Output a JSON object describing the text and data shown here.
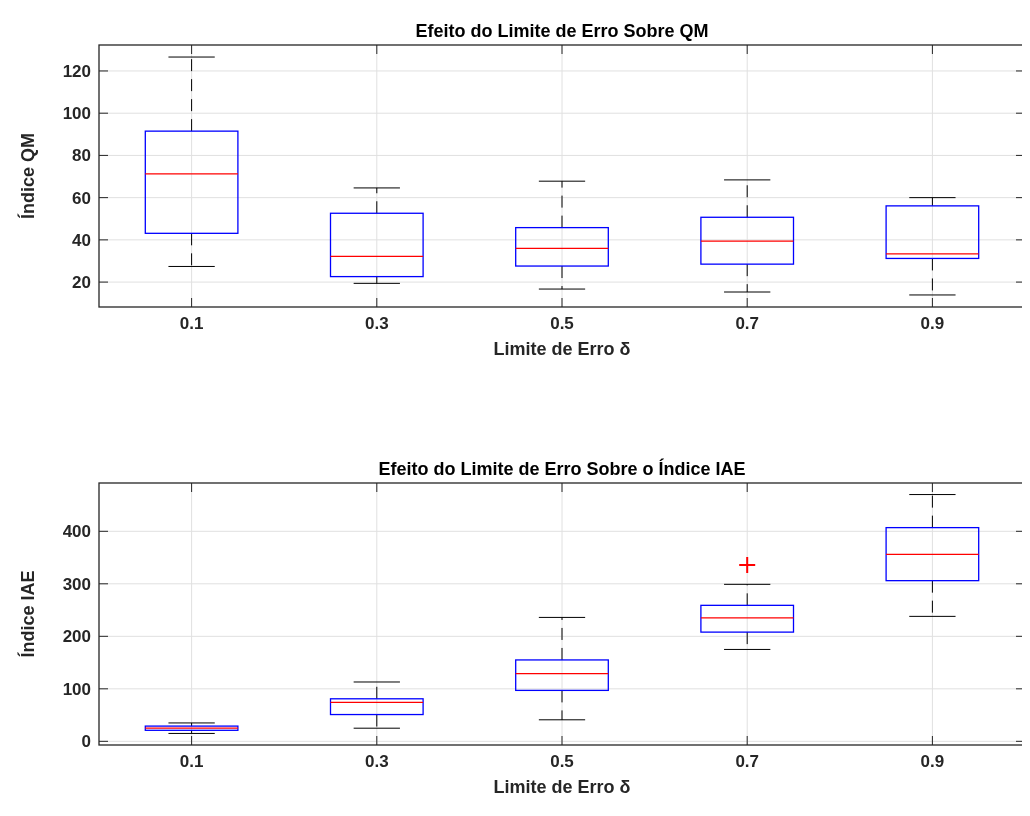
{
  "chart_data": [
    {
      "type": "box",
      "title": "Efeito do Limite de Erro Sobre QM",
      "xlabel": "Limite de Erro δ",
      "ylabel": "Índice QM",
      "categories": [
        "0.1",
        "0.3",
        "0.5",
        "0.7",
        "0.9"
      ],
      "ylim": [
        8.2,
        132.3
      ],
      "yticks": [
        20,
        40,
        60,
        80,
        100,
        120
      ],
      "grid": true,
      "boxes": [
        {
          "low": 27.4,
          "q1": 43.1,
          "median": 71.3,
          "q3": 91.5,
          "high": 126.6
        },
        {
          "low": 19.4,
          "q1": 22.6,
          "median": 32.2,
          "q3": 52.6,
          "high": 64.6
        },
        {
          "low": 16.7,
          "q1": 27.6,
          "median": 36.0,
          "q3": 45.8,
          "high": 67.8
        },
        {
          "low": 15.3,
          "q1": 28.5,
          "median": 39.4,
          "q3": 50.7,
          "high": 68.4
        },
        {
          "low": 13.9,
          "q1": 31.2,
          "median": 33.4,
          "q3": 56.1,
          "high": 60.0
        }
      ]
    },
    {
      "type": "box",
      "title": "Efeito do Limite de Erro Sobre o Índice IAE",
      "xlabel": "Limite de Erro δ",
      "ylabel": "Índice IAE",
      "categories": [
        "0.1",
        "0.3",
        "0.5",
        "0.7",
        "0.9"
      ],
      "ylim": [
        -7,
        492
      ],
      "yticks": [
        0,
        100,
        200,
        300,
        400
      ],
      "grid": true,
      "boxes": [
        {
          "low": 15,
          "q1": 21,
          "median": 25,
          "q3": 29,
          "high": 35
        },
        {
          "low": 25,
          "q1": 51,
          "median": 74,
          "q3": 81,
          "high": 113
        },
        {
          "low": 41,
          "q1": 97,
          "median": 129,
          "q3": 155,
          "high": 236
        },
        {
          "low": 175,
          "q1": 208,
          "median": 235,
          "q3": 259,
          "high": 299,
          "outliers": [
            336
          ]
        },
        {
          "low": 238,
          "q1": 306,
          "median": 356,
          "q3": 407,
          "high": 470
        }
      ]
    }
  ]
}
